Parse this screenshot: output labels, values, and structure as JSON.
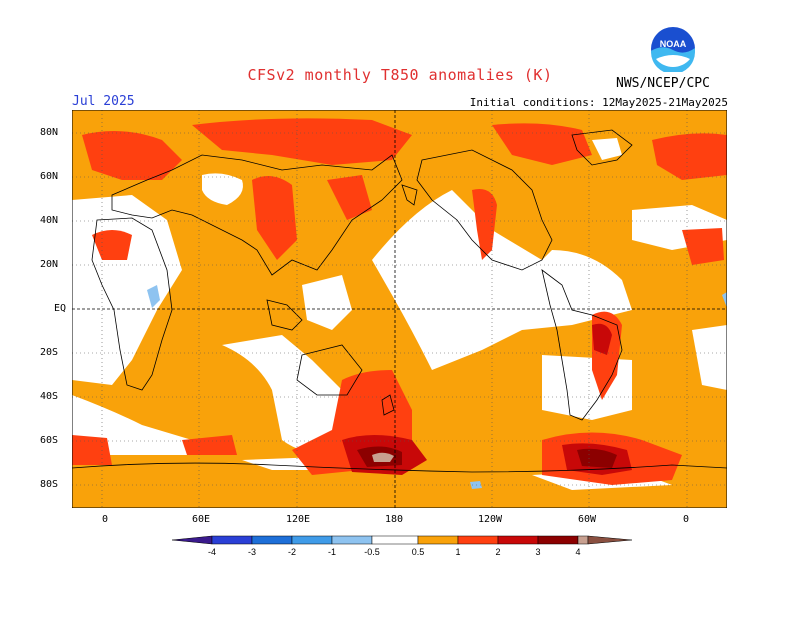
{
  "header": {
    "title": "CFSv2 monthly T850 anomalies (K)",
    "month": "Jul 2025",
    "initial_conditions": "Initial conditions: 12May2025-21May2025",
    "agency": "NWS/NCEP/CPC",
    "logo_text": "NOAA"
  },
  "map": {
    "lat_labels": [
      "80N",
      "60N",
      "40N",
      "20N",
      "EQ",
      "20S",
      "40S",
      "60S",
      "80S"
    ],
    "lon_labels": [
      "0",
      "60E",
      "120E",
      "180",
      "120W",
      "60W",
      "0"
    ]
  },
  "colorbar": {
    "labels": [
      "-4",
      "-3",
      "-2",
      "-1",
      "-0.5",
      "0.5",
      "1",
      "2",
      "3",
      "4"
    ],
    "colors": {
      "lt_-4": "#3a1a8c",
      "-4_-3": "#2a3fd6",
      "-3_-2": "#1e6fd8",
      "-2_-1": "#3f9be8",
      "-1_-0.5": "#8ec3f0",
      "-0.5_0.5": "#ffffff",
      "0.5_1": "#f9a20a",
      "1_2": "#ff4010",
      "2_3": "#c80808",
      "3_4": "#8c0000",
      "gt_4": "#c8a090"
    }
  }
}
